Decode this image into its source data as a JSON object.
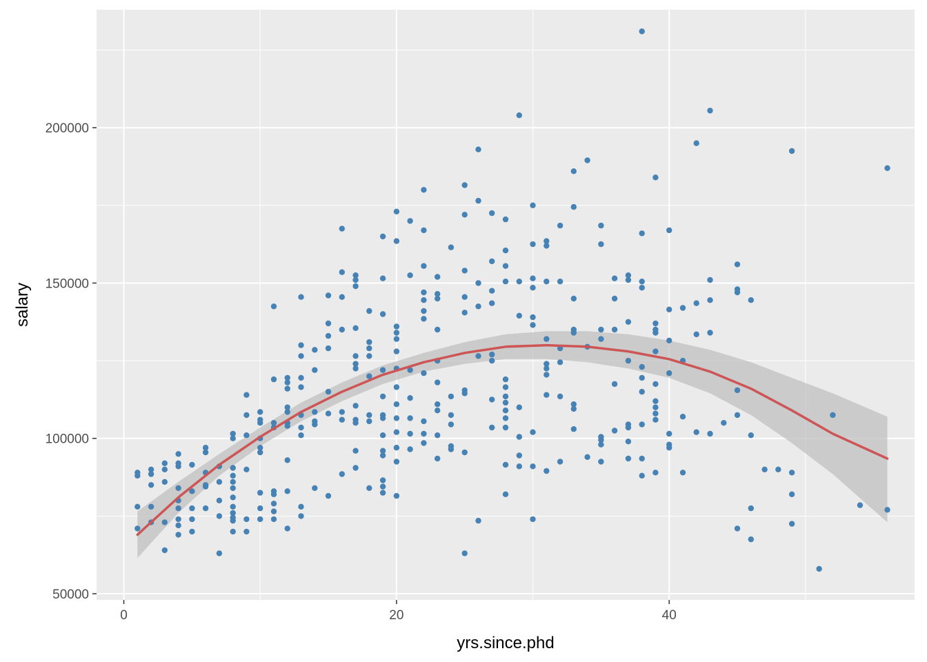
{
  "chart_data": {
    "type": "scatter",
    "title": "",
    "xlabel": "yrs.since.phd",
    "ylabel": "salary",
    "xlim": [
      -2,
      58
    ],
    "ylim": [
      48000,
      238000
    ],
    "x_ticks": [
      0,
      20,
      40
    ],
    "x_tick_labels": [
      "0",
      "20",
      "40"
    ],
    "y_ticks": [
      50000,
      100000,
      150000,
      200000
    ],
    "y_tick_labels": [
      "50000",
      "100000",
      "150000",
      "200000"
    ],
    "grid": true,
    "legend": "none",
    "colors": {
      "panel_background": "#ebebeb",
      "grid": "#ffffff",
      "points": "#4682b4",
      "fit_line": "#cd5555",
      "confidence_band": "#bebebe"
    },
    "points": [
      [
        1,
        89000
      ],
      [
        1,
        88000
      ],
      [
        1,
        78000
      ],
      [
        1,
        71000
      ],
      [
        2,
        90000
      ],
      [
        2,
        88500
      ],
      [
        2,
        85000
      ],
      [
        2,
        78000
      ],
      [
        2,
        73000
      ],
      [
        3,
        92000
      ],
      [
        3,
        90000
      ],
      [
        3,
        86000
      ],
      [
        3,
        73000
      ],
      [
        3,
        64000
      ],
      [
        4,
        95000
      ],
      [
        4,
        92000
      ],
      [
        4,
        91000
      ],
      [
        4,
        84000
      ],
      [
        4,
        80000
      ],
      [
        4,
        77500
      ],
      [
        4,
        74000
      ],
      [
        4,
        72000
      ],
      [
        4,
        69000
      ],
      [
        5,
        91500
      ],
      [
        5,
        83000
      ],
      [
        5,
        77500
      ],
      [
        5,
        74000
      ],
      [
        5,
        70000
      ],
      [
        6,
        97000
      ],
      [
        6,
        95500
      ],
      [
        6,
        89000
      ],
      [
        6,
        85000
      ],
      [
        6,
        84500
      ],
      [
        6,
        77500
      ],
      [
        7,
        91000
      ],
      [
        7,
        86000
      ],
      [
        7,
        80000
      ],
      [
        7,
        75000
      ],
      [
        7,
        63000
      ],
      [
        8,
        101500
      ],
      [
        8,
        100000
      ],
      [
        8,
        90500
      ],
      [
        8,
        88000
      ],
      [
        8,
        86000
      ],
      [
        8,
        84000
      ],
      [
        8,
        81000
      ],
      [
        8,
        78000
      ],
      [
        8,
        76000
      ],
      [
        8,
        74500
      ],
      [
        8,
        73500
      ],
      [
        8,
        70000
      ],
      [
        9,
        114000
      ],
      [
        9,
        107500
      ],
      [
        9,
        101000
      ],
      [
        9,
        90000
      ],
      [
        9,
        74000
      ],
      [
        9,
        70000
      ],
      [
        10,
        108500
      ],
      [
        10,
        106000
      ],
      [
        10,
        105000
      ],
      [
        10,
        100000
      ],
      [
        10,
        97000
      ],
      [
        10,
        95500
      ],
      [
        10,
        82500
      ],
      [
        10,
        77500
      ],
      [
        10,
        74000
      ],
      [
        11,
        142500
      ],
      [
        11,
        119000
      ],
      [
        11,
        105000
      ],
      [
        11,
        103500
      ],
      [
        11,
        83000
      ],
      [
        11,
        82000
      ],
      [
        11,
        79000
      ],
      [
        11,
        76500
      ],
      [
        11,
        74000
      ],
      [
        12,
        119500
      ],
      [
        12,
        118000
      ],
      [
        12,
        116000
      ],
      [
        12,
        110000
      ],
      [
        12,
        108500
      ],
      [
        12,
        105000
      ],
      [
        12,
        104000
      ],
      [
        12,
        93000
      ],
      [
        12,
        83000
      ],
      [
        12,
        71000
      ],
      [
        13,
        145500
      ],
      [
        13,
        130000
      ],
      [
        13,
        126500
      ],
      [
        13,
        119500
      ],
      [
        13,
        116500
      ],
      [
        13,
        107500
      ],
      [
        13,
        103500
      ],
      [
        13,
        101000
      ],
      [
        13,
        78000
      ],
      [
        13,
        75000
      ],
      [
        14,
        128500
      ],
      [
        14,
        122000
      ],
      [
        14,
        108500
      ],
      [
        14,
        105500
      ],
      [
        14,
        104500
      ],
      [
        14,
        84000
      ],
      [
        15,
        146000
      ],
      [
        15,
        137000
      ],
      [
        15,
        133000
      ],
      [
        15,
        129000
      ],
      [
        15,
        115000
      ],
      [
        15,
        108000
      ],
      [
        15,
        81500
      ],
      [
        16,
        167500
      ],
      [
        16,
        153500
      ],
      [
        16,
        145500
      ],
      [
        16,
        135000
      ],
      [
        16,
        108500
      ],
      [
        16,
        106000
      ],
      [
        16,
        88500
      ],
      [
        17,
        152500
      ],
      [
        17,
        151000
      ],
      [
        17,
        149000
      ],
      [
        17,
        135500
      ],
      [
        17,
        126500
      ],
      [
        17,
        124000
      ],
      [
        17,
        122500
      ],
      [
        17,
        110500
      ],
      [
        17,
        106000
      ],
      [
        17,
        105000
      ],
      [
        17,
        96000
      ],
      [
        17,
        90500
      ],
      [
        18,
        141000
      ],
      [
        18,
        131000
      ],
      [
        18,
        129000
      ],
      [
        18,
        126500
      ],
      [
        18,
        120000
      ],
      [
        18,
        107500
      ],
      [
        18,
        105500
      ],
      [
        18,
        84000
      ],
      [
        19,
        165000
      ],
      [
        19,
        151500
      ],
      [
        19,
        140000
      ],
      [
        19,
        122000
      ],
      [
        19,
        113500
      ],
      [
        19,
        107500
      ],
      [
        19,
        106500
      ],
      [
        19,
        101000
      ],
      [
        19,
        96000
      ],
      [
        19,
        94500
      ],
      [
        19,
        86500
      ],
      [
        19,
        84500
      ],
      [
        19,
        82500
      ],
      [
        20,
        173000
      ],
      [
        20,
        163500
      ],
      [
        20,
        136000
      ],
      [
        20,
        134000
      ],
      [
        20,
        132000
      ],
      [
        20,
        128000
      ],
      [
        20,
        122500
      ],
      [
        20,
        116500
      ],
      [
        20,
        111000
      ],
      [
        20,
        106500
      ],
      [
        20,
        102000
      ],
      [
        20,
        97000
      ],
      [
        20,
        92500
      ],
      [
        20,
        81500
      ],
      [
        21,
        170000
      ],
      [
        21,
        152500
      ],
      [
        21,
        122000
      ],
      [
        21,
        113000
      ],
      [
        21,
        106500
      ],
      [
        21,
        101500
      ],
      [
        21,
        96500
      ],
      [
        22,
        180000
      ],
      [
        22,
        167000
      ],
      [
        22,
        155500
      ],
      [
        22,
        147000
      ],
      [
        22,
        144500
      ],
      [
        22,
        141000
      ],
      [
        22,
        138500
      ],
      [
        22,
        121000
      ],
      [
        22,
        105500
      ],
      [
        22,
        101500
      ],
      [
        22,
        98500
      ],
      [
        23,
        152000
      ],
      [
        23,
        146500
      ],
      [
        23,
        145000
      ],
      [
        23,
        135000
      ],
      [
        23,
        125000
      ],
      [
        23,
        118000
      ],
      [
        23,
        111000
      ],
      [
        23,
        109000
      ],
      [
        23,
        101000
      ],
      [
        23,
        93500
      ],
      [
        24,
        161500
      ],
      [
        24,
        113500
      ],
      [
        24,
        107500
      ],
      [
        24,
        104500
      ],
      [
        24,
        97500
      ],
      [
        24,
        96500
      ],
      [
        25,
        181500
      ],
      [
        25,
        172000
      ],
      [
        25,
        154000
      ],
      [
        25,
        145500
      ],
      [
        25,
        140500
      ],
      [
        25,
        115500
      ],
      [
        25,
        114500
      ],
      [
        25,
        95500
      ],
      [
        25,
        63000
      ],
      [
        26,
        193000
      ],
      [
        26,
        176500
      ],
      [
        26,
        150000
      ],
      [
        26,
        142500
      ],
      [
        26,
        126500
      ],
      [
        26,
        73500
      ],
      [
        27,
        172500
      ],
      [
        27,
        157000
      ],
      [
        27,
        147500
      ],
      [
        27,
        143500
      ],
      [
        27,
        127000
      ],
      [
        27,
        125000
      ],
      [
        27,
        112500
      ],
      [
        27,
        103500
      ],
      [
        28,
        170500
      ],
      [
        28,
        160500
      ],
      [
        28,
        155500
      ],
      [
        28,
        150500
      ],
      [
        28,
        119000
      ],
      [
        28,
        116500
      ],
      [
        28,
        113500
      ],
      [
        28,
        111500
      ],
      [
        28,
        109000
      ],
      [
        28,
        106500
      ],
      [
        28,
        103500
      ],
      [
        28,
        91500
      ],
      [
        28,
        82000
      ],
      [
        29,
        204000
      ],
      [
        29,
        150500
      ],
      [
        29,
        139500
      ],
      [
        29,
        110000
      ],
      [
        29,
        100500
      ],
      [
        29,
        94500
      ],
      [
        29,
        91000
      ],
      [
        30,
        175000
      ],
      [
        30,
        162500
      ],
      [
        30,
        151500
      ],
      [
        30,
        148500
      ],
      [
        30,
        139000
      ],
      [
        30,
        136500
      ],
      [
        30,
        102000
      ],
      [
        30,
        91000
      ],
      [
        30,
        74000
      ],
      [
        31,
        163500
      ],
      [
        31,
        162000
      ],
      [
        31,
        150500
      ],
      [
        31,
        132000
      ],
      [
        31,
        124000
      ],
      [
        31,
        122500
      ],
      [
        31,
        120500
      ],
      [
        31,
        114000
      ],
      [
        31,
        89500
      ],
      [
        32,
        168500
      ],
      [
        32,
        150500
      ],
      [
        32,
        129000
      ],
      [
        32,
        124500
      ],
      [
        32,
        113500
      ],
      [
        32,
        92500
      ],
      [
        33,
        186000
      ],
      [
        33,
        174500
      ],
      [
        33,
        145000
      ],
      [
        33,
        135000
      ],
      [
        33,
        134000
      ],
      [
        33,
        111000
      ],
      [
        33,
        109500
      ],
      [
        33,
        103000
      ],
      [
        34,
        189500
      ],
      [
        34,
        129500
      ],
      [
        34,
        94000
      ],
      [
        35,
        168500
      ],
      [
        35,
        162500
      ],
      [
        35,
        135000
      ],
      [
        35,
        132000
      ],
      [
        35,
        100500
      ],
      [
        35,
        99500
      ],
      [
        35,
        98000
      ],
      [
        35,
        92500
      ],
      [
        36,
        151500
      ],
      [
        36,
        145000
      ],
      [
        36,
        135000
      ],
      [
        36,
        117500
      ],
      [
        36,
        102500
      ],
      [
        37,
        152500
      ],
      [
        37,
        151000
      ],
      [
        37,
        137500
      ],
      [
        37,
        125000
      ],
      [
        37,
        104500
      ],
      [
        37,
        103500
      ],
      [
        37,
        99000
      ],
      [
        37,
        93500
      ],
      [
        38,
        231000
      ],
      [
        38,
        166000
      ],
      [
        38,
        150500
      ],
      [
        38,
        148500
      ],
      [
        38,
        123000
      ],
      [
        38,
        119500
      ],
      [
        38,
        115000
      ],
      [
        38,
        104500
      ],
      [
        38,
        93500
      ],
      [
        38,
        88000
      ],
      [
        39,
        184000
      ],
      [
        39,
        137000
      ],
      [
        39,
        135000
      ],
      [
        39,
        134000
      ],
      [
        39,
        128000
      ],
      [
        39,
        117500
      ],
      [
        39,
        112000
      ],
      [
        39,
        110000
      ],
      [
        39,
        108000
      ],
      [
        39,
        106000
      ],
      [
        39,
        89000
      ],
      [
        40,
        167000
      ],
      [
        40,
        141500
      ],
      [
        40,
        131500
      ],
      [
        40,
        121000
      ],
      [
        40,
        101500
      ],
      [
        40,
        98000
      ],
      [
        40,
        97000
      ],
      [
        41,
        142000
      ],
      [
        41,
        125000
      ],
      [
        41,
        107000
      ],
      [
        41,
        89000
      ],
      [
        42,
        195000
      ],
      [
        42,
        143500
      ],
      [
        42,
        133500
      ],
      [
        42,
        102000
      ],
      [
        43,
        205500
      ],
      [
        43,
        151000
      ],
      [
        43,
        144500
      ],
      [
        43,
        134000
      ],
      [
        43,
        101500
      ],
      [
        44,
        105000
      ],
      [
        45,
        156000
      ],
      [
        45,
        148000
      ],
      [
        45,
        147000
      ],
      [
        45,
        115500
      ],
      [
        45,
        107500
      ],
      [
        45,
        71000
      ],
      [
        46,
        144500
      ],
      [
        46,
        101000
      ],
      [
        46,
        77500
      ],
      [
        46,
        67500
      ],
      [
        47,
        90000
      ],
      [
        48,
        90000
      ],
      [
        49,
        192500
      ],
      [
        49,
        89000
      ],
      [
        49,
        82000
      ],
      [
        49,
        72500
      ],
      [
        51,
        58000
      ],
      [
        52,
        107500
      ],
      [
        54,
        78500
      ],
      [
        56,
        187000
      ],
      [
        56,
        77000
      ]
    ],
    "fit_curve": {
      "label": "",
      "x": [
        1,
        4,
        7,
        10,
        13,
        16,
        19,
        22,
        25,
        28,
        31,
        34,
        37,
        40,
        43,
        46,
        49,
        52,
        56
      ],
      "y": [
        69000,
        81000,
        91500,
        100500,
        108500,
        115000,
        120500,
        124500,
        127500,
        129500,
        130000,
        129500,
        128000,
        125500,
        121500,
        116000,
        109000,
        101500,
        93500
      ],
      "ci_lower": [
        61500,
        76000,
        88000,
        97500,
        105500,
        112000,
        117500,
        121500,
        124000,
        125500,
        125500,
        124500,
        122500,
        119500,
        114500,
        107500,
        98500,
        88500,
        73000
      ],
      "ci_upper": [
        76500,
        86000,
        95000,
        103500,
        111500,
        118000,
        123500,
        127500,
        131000,
        133500,
        134500,
        134500,
        133500,
        131500,
        128500,
        124500,
        119500,
        114500,
        107000
      ]
    }
  }
}
